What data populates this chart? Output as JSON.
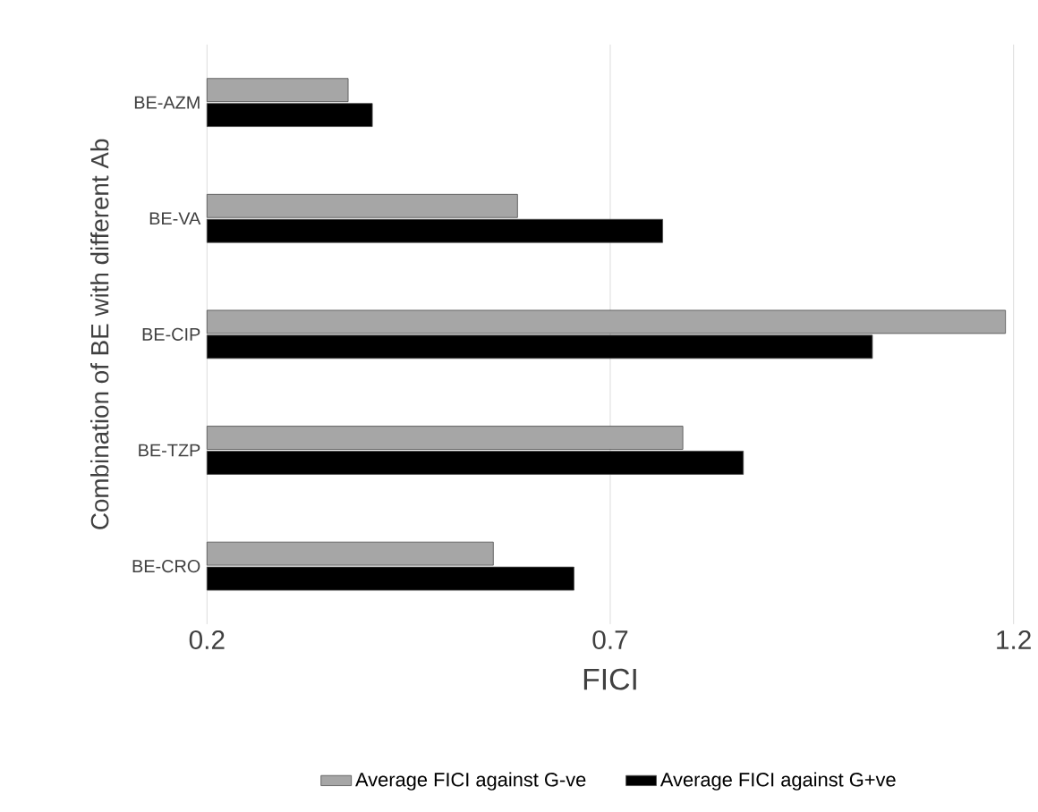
{
  "chart_data": {
    "type": "bar",
    "orientation": "horizontal",
    "xlabel": "FICI",
    "ylabel": "Combination of BE with different Ab",
    "categories": [
      "BE-AZM",
      "BE-VA",
      "BE-CIP",
      "BE-TZP",
      "BE-CRO"
    ],
    "series": [
      {
        "name": "Average FICI against G-ve",
        "color": "#a6a6a6",
        "values": [
          0.375,
          0.585,
          1.19,
          0.79,
          0.555
        ]
      },
      {
        "name": "Average FICI against G+ve",
        "color": "#000000",
        "values": [
          0.405,
          0.765,
          1.025,
          0.865,
          0.655
        ]
      }
    ],
    "xlim": [
      0.2,
      1.2
    ],
    "xticks": [
      0.2,
      0.7,
      1.2
    ],
    "grid": "x",
    "legend": "bottom"
  }
}
